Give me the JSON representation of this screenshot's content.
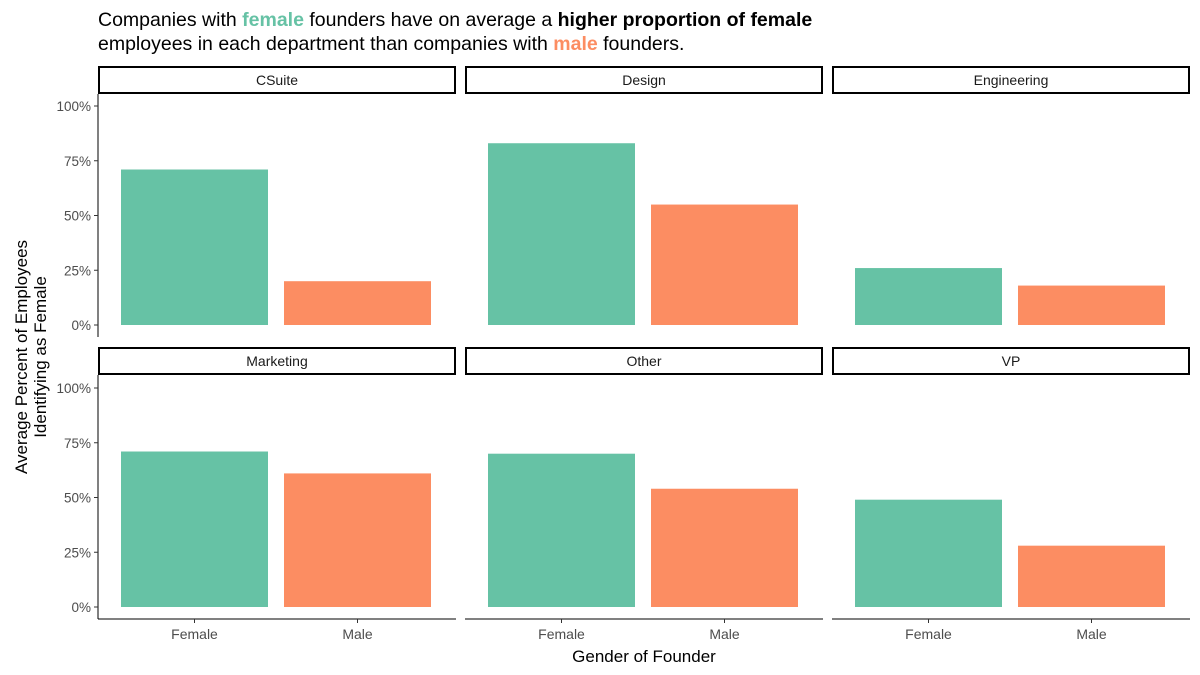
{
  "title": {
    "p1": "Companies with ",
    "female_word": "female",
    "p2": " founders have on average a ",
    "bold_phrase": "higher proportion of female",
    "p3": "employees in each department than companies with ",
    "male_word": "male",
    "p4": " founders."
  },
  "colors": {
    "female": "#66c2a5",
    "male": "#fc8d62"
  },
  "chart_data": {
    "type": "bar",
    "facet_by": "department",
    "xlabel": "Gender of Founder",
    "ylabel_lines": [
      "Average Percent of Employees",
      "Identifying as Female"
    ],
    "categories": [
      "Female",
      "Male"
    ],
    "yticks": [
      "0%",
      "25%",
      "50%",
      "75%",
      "100%"
    ],
    "ylim": [
      0,
      1.0
    ],
    "facets": [
      {
        "name": "CSuite",
        "values": [
          0.71,
          0.2
        ]
      },
      {
        "name": "Design",
        "values": [
          0.83,
          0.55
        ]
      },
      {
        "name": "Engineering",
        "values": [
          0.26,
          0.18
        ]
      },
      {
        "name": "Marketing",
        "values": [
          0.71,
          0.61
        ]
      },
      {
        "name": "Other",
        "values": [
          0.7,
          0.54
        ]
      },
      {
        "name": "VP",
        "values": [
          0.49,
          0.28
        ]
      }
    ]
  }
}
